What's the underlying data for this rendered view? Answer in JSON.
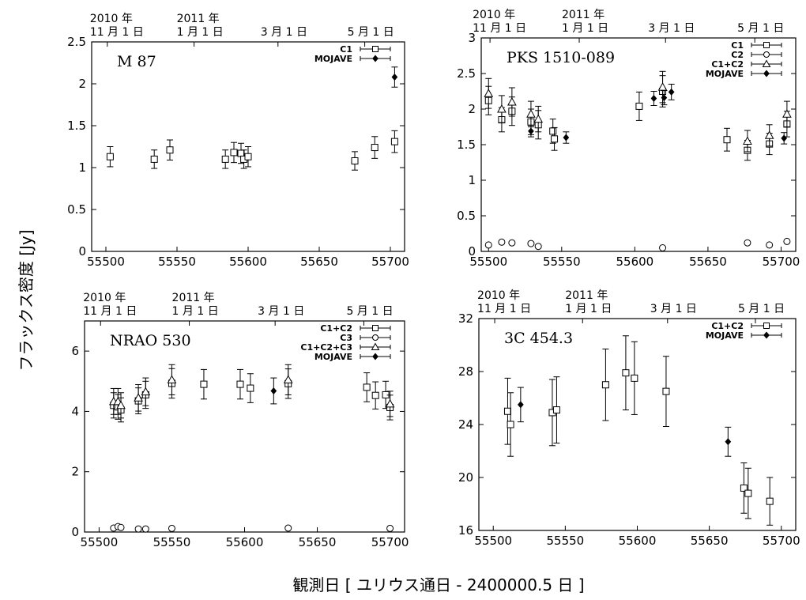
{
  "figure": {
    "xlabel": "観測日 [ ユリウス通日 - 2400000.5 日 ]",
    "ylabel": "フラックス密度 [Jy]"
  },
  "chart_data": [
    {
      "type": "scatter",
      "object": "M 87",
      "xlim": [
        55490,
        55710
      ],
      "ylim": [
        0,
        2.5
      ],
      "xticks": [
        55500,
        55550,
        55600,
        55650,
        55700
      ],
      "yticks": [
        0,
        0.5,
        1,
        1.5,
        2,
        2.5
      ],
      "ytick_labels": [
        "0",
        "0.5",
        "1",
        "1.5",
        "2",
        "2.5"
      ],
      "date_ticks": [
        {
          "x": 55501,
          "line1": "2010 年",
          "line2": "11 月 1 日"
        },
        {
          "x": 55562,
          "line1": "2011 年",
          "line2": "1 月 1 日"
        },
        {
          "x": 55621,
          "line1": "",
          "line2": "3 月 1 日"
        },
        {
          "x": 55682,
          "line1": "",
          "line2": "5 月 1 日"
        }
      ],
      "series": [
        {
          "name": "C1",
          "marker": "square",
          "points": [
            {
              "x": 55503,
              "y": 1.13,
              "err": 0.12
            },
            {
              "x": 55534,
              "y": 1.1,
              "err": 0.11
            },
            {
              "x": 55545,
              "y": 1.21,
              "err": 0.12
            },
            {
              "x": 55584,
              "y": 1.1,
              "err": 0.11
            },
            {
              "x": 55590,
              "y": 1.18,
              "err": 0.12
            },
            {
              "x": 55595,
              "y": 1.17,
              "err": 0.12
            },
            {
              "x": 55597,
              "y": 1.1,
              "err": 0.11
            },
            {
              "x": 55600,
              "y": 1.13,
              "err": 0.12
            },
            {
              "x": 55675,
              "y": 1.08,
              "err": 0.11
            },
            {
              "x": 55689,
              "y": 1.24,
              "err": 0.13
            },
            {
              "x": 55703,
              "y": 1.31,
              "err": 0.13
            }
          ]
        },
        {
          "name": "MOJAVE",
          "marker": "diamond",
          "points": [
            {
              "x": 55703,
              "y": 2.08,
              "err": 0.12
            }
          ]
        }
      ]
    },
    {
      "type": "scatter",
      "object": "PKS 1510-089",
      "xlim": [
        55495,
        55710
      ],
      "ylim": [
        0,
        3
      ],
      "xticks": [
        55500,
        55550,
        55600,
        55650,
        55700
      ],
      "yticks": [
        0,
        0.5,
        1,
        1.5,
        2,
        2.5,
        3
      ],
      "ytick_labels": [
        "0",
        "0.5",
        "1",
        "1.5",
        "2",
        "2.5",
        "3"
      ],
      "date_ticks": [
        {
          "x": 55501,
          "line1": "2010 年",
          "line2": "11 月 1 日"
        },
        {
          "x": 55562,
          "line1": "2011 年",
          "line2": "1 月 1 日"
        },
        {
          "x": 55621,
          "line1": "",
          "line2": "3 月 1 日"
        },
        {
          "x": 55682,
          "line1": "",
          "line2": "5 月 1 日"
        }
      ],
      "series": [
        {
          "name": "C1",
          "marker": "square",
          "points": [
            {
              "x": 55500,
              "y": 2.12,
              "err": 0.2
            },
            {
              "x": 55509,
              "y": 1.85,
              "err": 0.17
            },
            {
              "x": 55516,
              "y": 1.97,
              "err": 0.2
            },
            {
              "x": 55529,
              "y": 1.82,
              "err": 0.18
            },
            {
              "x": 55534,
              "y": 1.78,
              "err": 0.2
            },
            {
              "x": 55544,
              "y": 1.69,
              "err": 0.17
            },
            {
              "x": 55545,
              "y": 1.58,
              "err": 0.16
            },
            {
              "x": 55603,
              "y": 2.04,
              "err": 0.2
            },
            {
              "x": 55619,
              "y": 2.25,
              "err": 0.22
            },
            {
              "x": 55663,
              "y": 1.57,
              "err": 0.16
            },
            {
              "x": 55677,
              "y": 1.42,
              "err": 0.14
            },
            {
              "x": 55692,
              "y": 1.51,
              "err": 0.15
            },
            {
              "x": 55704,
              "y": 1.79,
              "err": 0.18
            }
          ]
        },
        {
          "name": "C2",
          "marker": "circle",
          "points": [
            {
              "x": 55500,
              "y": 0.09,
              "err": 0.01
            },
            {
              "x": 55509,
              "y": 0.13,
              "err": 0.01
            },
            {
              "x": 55516,
              "y": 0.12,
              "err": 0.01
            },
            {
              "x": 55529,
              "y": 0.11,
              "err": 0.01
            },
            {
              "x": 55534,
              "y": 0.07,
              "err": 0.01
            },
            {
              "x": 55619,
              "y": 0.05,
              "err": 0.01
            },
            {
              "x": 55677,
              "y": 0.12,
              "err": 0.01
            },
            {
              "x": 55692,
              "y": 0.09,
              "err": 0.01
            },
            {
              "x": 55704,
              "y": 0.14,
              "err": 0.01
            }
          ]
        },
        {
          "name": "C1+C2",
          "marker": "triangle",
          "points": [
            {
              "x": 55500,
              "y": 2.22,
              "err": 0.21
            },
            {
              "x": 55509,
              "y": 2.0,
              "err": 0.19
            },
            {
              "x": 55516,
              "y": 2.1,
              "err": 0.2
            },
            {
              "x": 55529,
              "y": 1.93,
              "err": 0.18
            },
            {
              "x": 55534,
              "y": 1.86,
              "err": 0.18
            },
            {
              "x": 55619,
              "y": 2.31,
              "err": 0.22
            },
            {
              "x": 55677,
              "y": 1.55,
              "err": 0.15
            },
            {
              "x": 55692,
              "y": 1.63,
              "err": 0.15
            },
            {
              "x": 55704,
              "y": 1.93,
              "err": 0.18
            }
          ]
        },
        {
          "name": "MOJAVE",
          "marker": "diamond",
          "points": [
            {
              "x": 55529,
              "y": 1.69,
              "err": 0.08
            },
            {
              "x": 55553,
              "y": 1.6,
              "err": 0.08
            },
            {
              "x": 55613,
              "y": 2.15,
              "err": 0.1
            },
            {
              "x": 55620,
              "y": 2.16,
              "err": 0.1
            },
            {
              "x": 55625,
              "y": 2.24,
              "err": 0.11
            },
            {
              "x": 55702,
              "y": 1.59,
              "err": 0.08
            }
          ]
        }
      ]
    },
    {
      "type": "scatter",
      "object": "NRAO 530",
      "xlim": [
        55490,
        55710
      ],
      "ylim": [
        0,
        7
      ],
      "xticks": [
        55500,
        55550,
        55600,
        55650,
        55700
      ],
      "yticks": [
        0,
        2,
        4,
        6
      ],
      "ytick_labels": [
        "0",
        "2",
        "4",
        "6"
      ],
      "date_ticks": [
        {
          "x": 55501,
          "line1": "2010 年",
          "line2": "11 月 1 日"
        },
        {
          "x": 55562,
          "line1": "2011 年",
          "line2": "1 月 1 日"
        },
        {
          "x": 55621,
          "line1": "",
          "line2": "3 月 1 日"
        },
        {
          "x": 55682,
          "line1": "",
          "line2": "5 月 1 日"
        }
      ],
      "series": [
        {
          "name": "C1+C2",
          "marker": "square",
          "points": [
            {
              "x": 55510,
              "y": 4.2,
              "err": 0.42
            },
            {
              "x": 55513,
              "y": 4.15,
              "err": 0.41
            },
            {
              "x": 55515,
              "y": 4.05,
              "err": 0.4
            },
            {
              "x": 55527,
              "y": 4.35,
              "err": 0.43
            },
            {
              "x": 55532,
              "y": 4.55,
              "err": 0.45
            },
            {
              "x": 55550,
              "y": 4.93,
              "err": 0.49
            },
            {
              "x": 55572,
              "y": 4.9,
              "err": 0.49
            },
            {
              "x": 55597,
              "y": 4.9,
              "err": 0.49
            },
            {
              "x": 55604,
              "y": 4.77,
              "err": 0.48
            },
            {
              "x": 55630,
              "y": 4.92,
              "err": 0.49
            },
            {
              "x": 55684,
              "y": 4.8,
              "err": 0.48
            },
            {
              "x": 55690,
              "y": 4.53,
              "err": 0.45
            },
            {
              "x": 55697,
              "y": 4.55,
              "err": 0.45
            },
            {
              "x": 55700,
              "y": 4.13,
              "err": 0.41
            }
          ]
        },
        {
          "name": "C3",
          "marker": "circle",
          "points": [
            {
              "x": 55510,
              "y": 0.13,
              "err": 0.01
            },
            {
              "x": 55513,
              "y": 0.18,
              "err": 0.01
            },
            {
              "x": 55515,
              "y": 0.15,
              "err": 0.01
            },
            {
              "x": 55527,
              "y": 0.1,
              "err": 0.01
            },
            {
              "x": 55532,
              "y": 0.1,
              "err": 0.01
            },
            {
              "x": 55550,
              "y": 0.12,
              "err": 0.01
            },
            {
              "x": 55630,
              "y": 0.13,
              "err": 0.01
            },
            {
              "x": 55700,
              "y": 0.12,
              "err": 0.01
            }
          ]
        },
        {
          "name": "C1+C2+C3",
          "marker": "triangle",
          "points": [
            {
              "x": 55510,
              "y": 4.33,
              "err": 0.43
            },
            {
              "x": 55513,
              "y": 4.33,
              "err": 0.43
            },
            {
              "x": 55515,
              "y": 4.2,
              "err": 0.42
            },
            {
              "x": 55527,
              "y": 4.45,
              "err": 0.44
            },
            {
              "x": 55532,
              "y": 4.65,
              "err": 0.46
            },
            {
              "x": 55550,
              "y": 5.05,
              "err": 0.5
            },
            {
              "x": 55630,
              "y": 5.05,
              "err": 0.5
            },
            {
              "x": 55700,
              "y": 4.25,
              "err": 0.42
            }
          ]
        },
        {
          "name": "MOJAVE",
          "marker": "diamond",
          "points": [
            {
              "x": 55620,
              "y": 4.68,
              "err": 0.43
            }
          ]
        }
      ]
    },
    {
      "type": "scatter",
      "object": "3C 454.3",
      "xlim": [
        55490,
        55710
      ],
      "ylim": [
        16,
        32
      ],
      "xticks": [
        55500,
        55550,
        55600,
        55650,
        55700
      ],
      "yticks": [
        16,
        20,
        24,
        28,
        32
      ],
      "ytick_labels": [
        "16",
        "20",
        "24",
        "28",
        "32"
      ],
      "date_ticks": [
        {
          "x": 55501,
          "line1": "2010 年",
          "line2": "11 月 1 日"
        },
        {
          "x": 55562,
          "line1": "2011 年",
          "line2": "1 月 1 日"
        },
        {
          "x": 55621,
          "line1": "",
          "line2": "3 月 1 日"
        },
        {
          "x": 55682,
          "line1": "",
          "line2": "5 月 1 日"
        }
      ],
      "series": [
        {
          "name": "C1+C2",
          "marker": "square",
          "points": [
            {
              "x": 55510,
              "y": 25.0,
              "err": 2.5
            },
            {
              "x": 55512,
              "y": 24.0,
              "err": 2.4
            },
            {
              "x": 55541,
              "y": 24.9,
              "err": 2.5
            },
            {
              "x": 55544,
              "y": 25.1,
              "err": 2.5
            },
            {
              "x": 55578,
              "y": 27.0,
              "err": 2.7
            },
            {
              "x": 55592,
              "y": 27.9,
              "err": 2.8
            },
            {
              "x": 55598,
              "y": 27.5,
              "err": 2.75
            },
            {
              "x": 55620,
              "y": 26.5,
              "err": 2.65
            },
            {
              "x": 55674,
              "y": 19.2,
              "err": 1.9
            },
            {
              "x": 55677,
              "y": 18.8,
              "err": 1.9
            },
            {
              "x": 55692,
              "y": 18.2,
              "err": 1.8
            }
          ]
        },
        {
          "name": "MOJAVE",
          "marker": "diamond",
          "points": [
            {
              "x": 55519,
              "y": 25.5,
              "err": 1.3
            },
            {
              "x": 55663,
              "y": 22.7,
              "err": 1.1
            }
          ]
        }
      ]
    }
  ]
}
